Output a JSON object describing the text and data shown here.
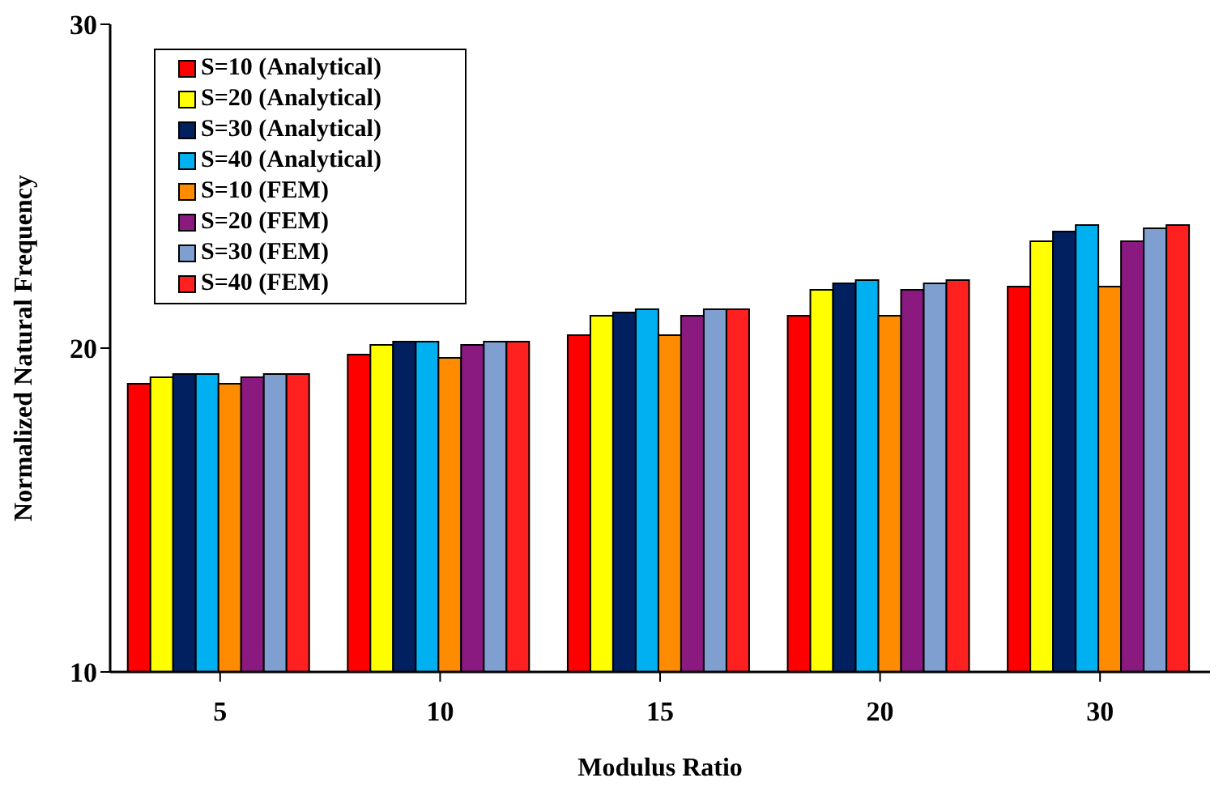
{
  "chart_data": {
    "type": "bar",
    "xlabel": "Modulus Ratio",
    "ylabel": "Normalized Natural Frequency",
    "categories": [
      "5",
      "10",
      "15",
      "20",
      "30"
    ],
    "ylim": [
      10,
      30
    ],
    "yticks": [
      10,
      20,
      30
    ],
    "grid": false,
    "legend": "top left",
    "series": [
      {
        "name": "S=10 (Analytical)",
        "color": "#ff0000",
        "values": [
          18.9,
          19.8,
          20.4,
          21.0,
          21.9
        ]
      },
      {
        "name": "S=20 (Analytical)",
        "color": "#ffff00",
        "values": [
          19.1,
          20.1,
          21.0,
          21.8,
          23.3
        ]
      },
      {
        "name": "S=30 (Analytical)",
        "color": "#002060",
        "values": [
          19.2,
          20.2,
          21.1,
          22.0,
          23.6
        ]
      },
      {
        "name": "S=40 (Analytical)",
        "color": "#00b0f0",
        "values": [
          19.2,
          20.2,
          21.2,
          22.1,
          23.8
        ]
      },
      {
        "name": "S=10 (FEM)",
        "color": "#ff8c00",
        "values": [
          18.9,
          19.7,
          20.4,
          21.0,
          21.9
        ]
      },
      {
        "name": "S=20 (FEM)",
        "color": "#8b1a80",
        "values": [
          19.1,
          20.1,
          21.0,
          21.8,
          23.3
        ]
      },
      {
        "name": "S=30 (FEM)",
        "color": "#7f9fd0",
        "values": [
          19.2,
          20.2,
          21.2,
          22.0,
          23.7
        ]
      },
      {
        "name": "S=40 (FEM)",
        "color": "#ff2020",
        "values": [
          19.2,
          20.2,
          21.2,
          22.1,
          23.8
        ]
      }
    ]
  }
}
